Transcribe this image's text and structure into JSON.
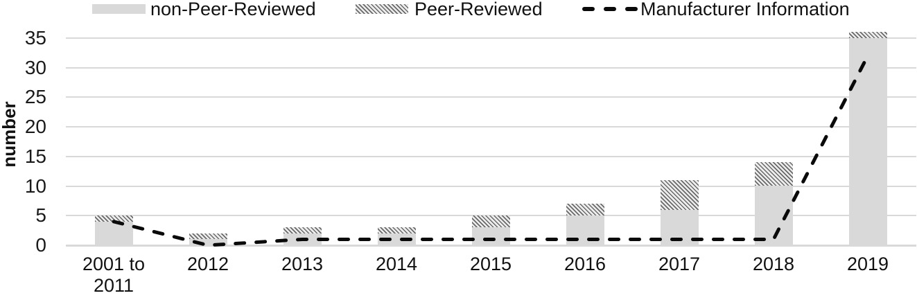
{
  "legend": [
    {
      "label": "non-Peer-Reviewed",
      "swatch": "solid-gray-rectangle"
    },
    {
      "label": "Peer-Reviewed",
      "swatch": "diagonal-hatched-rectangle"
    },
    {
      "label": "Manufacturer Information",
      "swatch": "black-dashed-line"
    }
  ],
  "colors": {
    "bar_fill": "#d9d9d9",
    "hatch_dark": "#696969",
    "hatch_light": "#ededed",
    "gridline": "#d9d9d9",
    "dashed_line": "#0a0a0a",
    "text": "#111111"
  },
  "chart_data": {
    "type": "bar",
    "subtype": "stacked bars with dashed line overlay",
    "title": "",
    "xlabel": "",
    "ylabel": "number",
    "ylim": [
      0,
      35
    ],
    "yticks": [
      0,
      5,
      10,
      15,
      20,
      25,
      30,
      35
    ],
    "grid": "horizontal",
    "legend_position": "top",
    "categories": [
      "2001 to 2011",
      "2012",
      "2013",
      "2014",
      "2015",
      "2016",
      "2017",
      "2018",
      "2019"
    ],
    "xtick_lines": [
      [
        "2001 to",
        "2011"
      ],
      [
        "2012"
      ],
      [
        "2013"
      ],
      [
        "2014"
      ],
      [
        "2015"
      ],
      [
        "2016"
      ],
      [
        "2017"
      ],
      [
        "2018"
      ],
      [
        "2019"
      ]
    ],
    "series": [
      {
        "name": "non-Peer-Reviewed",
        "type": "bar",
        "stack": true,
        "values": [
          4,
          1,
          2,
          2,
          3,
          5,
          6,
          10,
          35
        ]
      },
      {
        "name": "Peer-Reviewed",
        "type": "bar",
        "stack": true,
        "values": [
          1,
          1,
          1,
          1,
          2,
          2,
          5,
          4,
          1
        ]
      },
      {
        "name": "Manufacturer Information",
        "type": "line",
        "style": "dashed",
        "values": [
          4,
          0,
          1,
          1,
          1,
          1,
          1,
          1,
          32
        ]
      }
    ],
    "bar_totals": [
      5,
      2,
      3,
      3,
      5,
      7,
      11,
      14,
      36
    ]
  }
}
